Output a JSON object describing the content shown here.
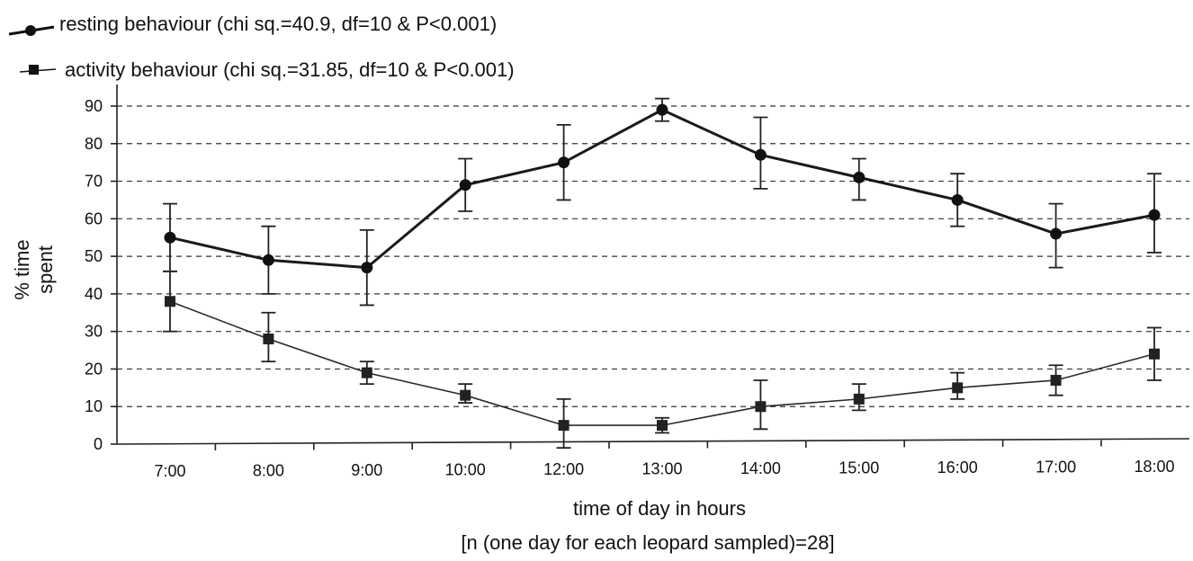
{
  "chart_data": {
    "type": "line",
    "title": "",
    "xlabel": "time of day in hours",
    "xlabel_note": "[n (one day for each leopard sampled)=28]",
    "ylabel_line1": "% time",
    "ylabel_line2": "spent",
    "categories": [
      "7:00",
      "8:00",
      "9:00",
      "10:00",
      "12:00",
      "13:00",
      "14:00",
      "15:00",
      "16:00",
      "17:00",
      "18:00"
    ],
    "ylim": [
      0,
      90
    ],
    "yticks": [
      "0",
      "10",
      "20",
      "30",
      "40",
      "50",
      "60",
      "70",
      "80",
      "90"
    ],
    "grid": true,
    "legend_position": "top-left",
    "series": [
      {
        "name": "resting behaviour (chi sq.=40.9, df=10 & P<0.001)",
        "marker": "circle",
        "color": "#1a1a1a",
        "values": [
          55,
          49,
          47,
          69,
          75,
          89,
          77,
          71,
          65,
          56,
          61
        ],
        "err_low": [
          46,
          40,
          37,
          62,
          65,
          86,
          68,
          65,
          58,
          47,
          51
        ],
        "err_high": [
          64,
          58,
          57,
          76,
          85,
          92,
          87,
          76,
          72,
          64,
          72
        ]
      },
      {
        "name": "activity behaviour (chi sq.=31.85, df=10 & P<0.001)",
        "marker": "square",
        "color": "#2a2a2a",
        "values": [
          38,
          28,
          19,
          13,
          5,
          5,
          10,
          12,
          15,
          17,
          24
        ],
        "err_low": [
          30,
          22,
          16,
          11,
          -1,
          3,
          4,
          9,
          12,
          13,
          17
        ],
        "err_high": [
          46,
          35,
          22,
          16,
          12,
          7,
          17,
          16,
          19,
          21,
          31
        ]
      }
    ]
  }
}
